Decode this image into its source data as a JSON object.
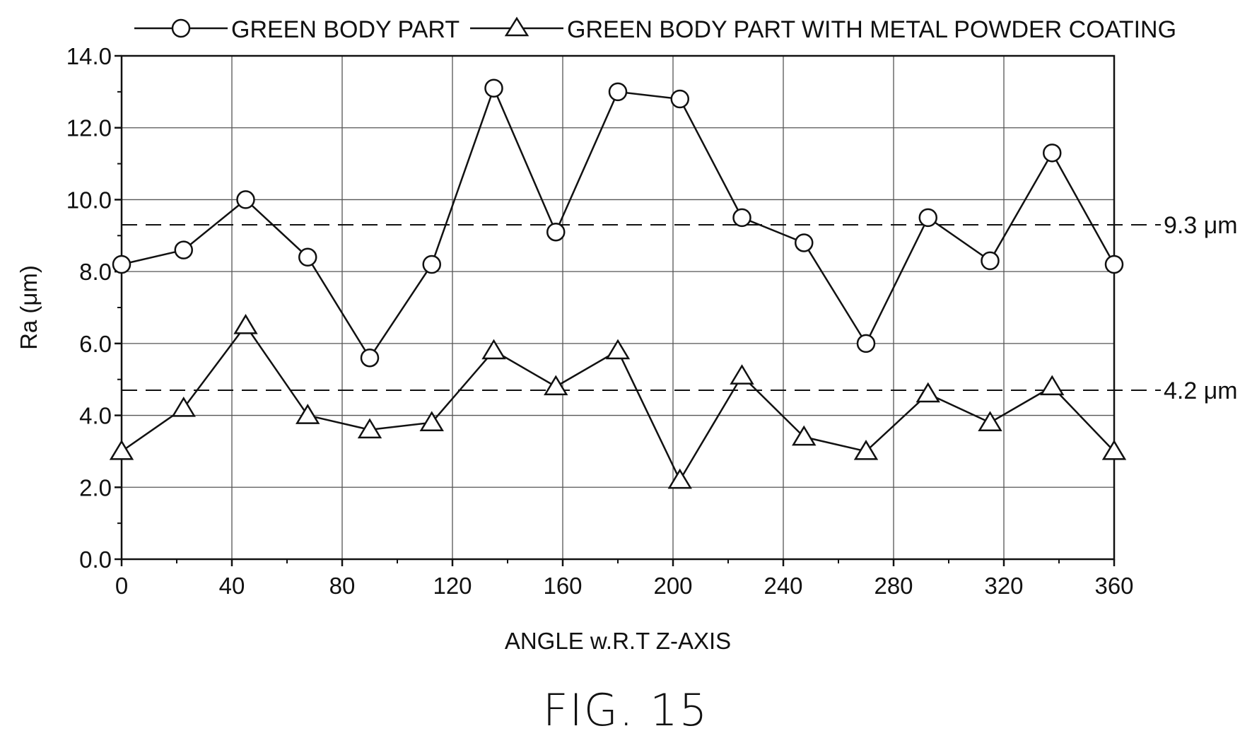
{
  "chart_data": {
    "type": "line",
    "title": "",
    "xlabel": "ANGLE w.R.T Z-AXIS",
    "ylabel": "Ra (μm)",
    "xlim": [
      0,
      360
    ],
    "ylim": [
      0,
      14
    ],
    "x_ticks": [
      0,
      40,
      80,
      120,
      160,
      200,
      240,
      280,
      320,
      360
    ],
    "x_tick_labels": [
      "0",
      "40",
      "80",
      "120",
      "160",
      "200",
      "240",
      "280",
      "320",
      "360"
    ],
    "y_ticks": [
      0,
      2,
      4,
      6,
      8,
      10,
      12,
      14
    ],
    "y_tick_labels": [
      "0.0",
      "2.0",
      "4.0",
      "6.0",
      "8.0",
      "10.0",
      "12.0",
      "14.0"
    ],
    "grid": true,
    "legend_position": "top",
    "x": [
      0,
      22.5,
      45,
      67.5,
      90,
      112.5,
      135,
      157.5,
      180,
      202.5,
      225,
      247.5,
      270,
      292.5,
      315,
      337.5,
      360
    ],
    "series": [
      {
        "name": "GREEN BODY PART",
        "marker": "circle",
        "values": [
          8.2,
          8.6,
          10.0,
          8.4,
          5.6,
          8.2,
          13.1,
          9.1,
          13.0,
          12.8,
          9.5,
          8.8,
          6.0,
          9.5,
          8.3,
          11.3,
          8.2
        ]
      },
      {
        "name": "GREEN BODY PART WITH METAL POWDER COATING",
        "marker": "triangle",
        "values": [
          3.0,
          4.2,
          6.5,
          4.0,
          3.6,
          3.8,
          5.8,
          4.8,
          5.8,
          2.2,
          5.1,
          3.4,
          3.0,
          4.6,
          3.8,
          4.8,
          3.0
        ]
      }
    ],
    "reference_lines": [
      {
        "value": 9.3,
        "label": "9.3 μm"
      },
      {
        "value": 4.7,
        "label": "4.2 μm"
      }
    ]
  },
  "figure_label": "FIG. 15",
  "colors": {
    "ink": "#111111",
    "grid": "#555555",
    "background": "#ffffff"
  }
}
